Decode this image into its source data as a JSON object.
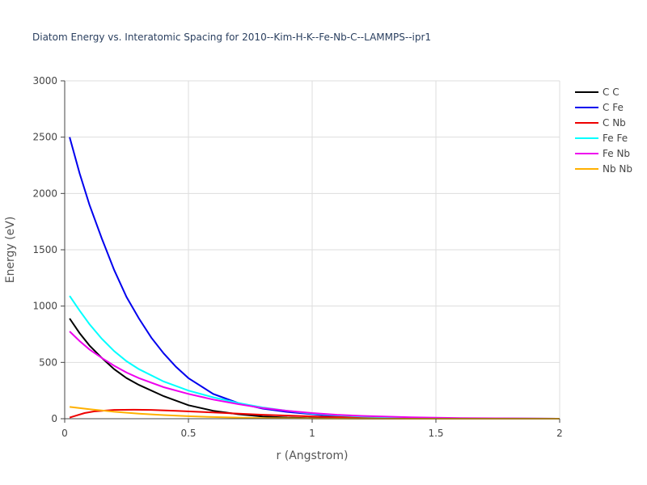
{
  "chart_data": {
    "type": "line",
    "title": "Diatom Energy vs. Interatomic Spacing for 2010--Kim-H-K--Fe-Nb-C--LAMMPS--ipr1",
    "xlabel": "r (Angstrom)",
    "ylabel": "Energy (eV)",
    "xlim": [
      0,
      2
    ],
    "ylim": [
      0,
      3000
    ],
    "xticks": [
      0,
      0.5,
      1,
      1.5,
      2
    ],
    "xtick_labels": [
      "0",
      "0.5",
      "1",
      "1.5",
      "2"
    ],
    "yticks": [
      0,
      500,
      1000,
      1500,
      2000,
      2500,
      3000
    ],
    "ytick_labels": [
      "0",
      "500",
      "1000",
      "1500",
      "2000",
      "2500",
      "3000"
    ],
    "grid": true,
    "legend_position": "top-right",
    "series": [
      {
        "name": "C C",
        "color": "#000000",
        "x": [
          0.02,
          0.06,
          0.1,
          0.15,
          0.2,
          0.25,
          0.3,
          0.4,
          0.5,
          0.6,
          0.7,
          0.8,
          0.9,
          1.0,
          1.2,
          1.5,
          2.0
        ],
        "y": [
          890,
          760,
          650,
          540,
          440,
          360,
          300,
          200,
          120,
          70,
          40,
          20,
          10,
          5,
          2,
          0,
          0
        ]
      },
      {
        "name": "C Fe",
        "color": "#0000ee",
        "x": [
          0.02,
          0.06,
          0.1,
          0.15,
          0.2,
          0.25,
          0.3,
          0.35,
          0.4,
          0.45,
          0.5,
          0.6,
          0.7,
          0.8,
          0.9,
          1.0,
          1.1,
          1.2,
          1.3,
          1.5,
          2.0
        ],
        "y": [
          2500,
          2180,
          1900,
          1600,
          1320,
          1080,
          890,
          720,
          580,
          460,
          360,
          220,
          140,
          90,
          60,
          40,
          20,
          10,
          5,
          2,
          0
        ]
      },
      {
        "name": "C Nb",
        "color": "#ee0000",
        "x": [
          0.02,
          0.08,
          0.12,
          0.2,
          0.28,
          0.35,
          0.45,
          0.6,
          0.8,
          1.0,
          1.2,
          1.5,
          2.0
        ],
        "y": [
          10,
          50,
          65,
          78,
          80,
          78,
          70,
          55,
          35,
          20,
          10,
          3,
          0
        ]
      },
      {
        "name": "Fe Fe",
        "color": "#00ffff",
        "x": [
          0.02,
          0.06,
          0.1,
          0.15,
          0.2,
          0.25,
          0.3,
          0.4,
          0.5,
          0.6,
          0.7,
          0.8,
          0.9,
          1.0,
          1.1,
          1.2,
          1.4,
          1.6,
          2.0
        ],
        "y": [
          1090,
          960,
          840,
          710,
          600,
          510,
          440,
          330,
          250,
          190,
          140,
          100,
          70,
          45,
          30,
          20,
          8,
          3,
          0
        ]
      },
      {
        "name": "Fe Nb",
        "color": "#ee00ee",
        "x": [
          0.02,
          0.06,
          0.1,
          0.15,
          0.2,
          0.25,
          0.3,
          0.4,
          0.5,
          0.6,
          0.7,
          0.8,
          0.9,
          1.0,
          1.1,
          1.2,
          1.4,
          1.6,
          2.0
        ],
        "y": [
          775,
          690,
          615,
          540,
          470,
          410,
          360,
          280,
          220,
          170,
          130,
          95,
          70,
          50,
          35,
          25,
          12,
          5,
          0
        ]
      },
      {
        "name": "Nb Nb",
        "color": "#ffb000",
        "x": [
          0.02,
          0.1,
          0.2,
          0.3,
          0.4,
          0.5,
          0.6,
          0.7,
          0.8,
          1.0,
          1.2,
          1.5,
          2.0
        ],
        "y": [
          105,
          85,
          62,
          45,
          32,
          22,
          15,
          10,
          6,
          2,
          1,
          0,
          0
        ]
      }
    ]
  }
}
